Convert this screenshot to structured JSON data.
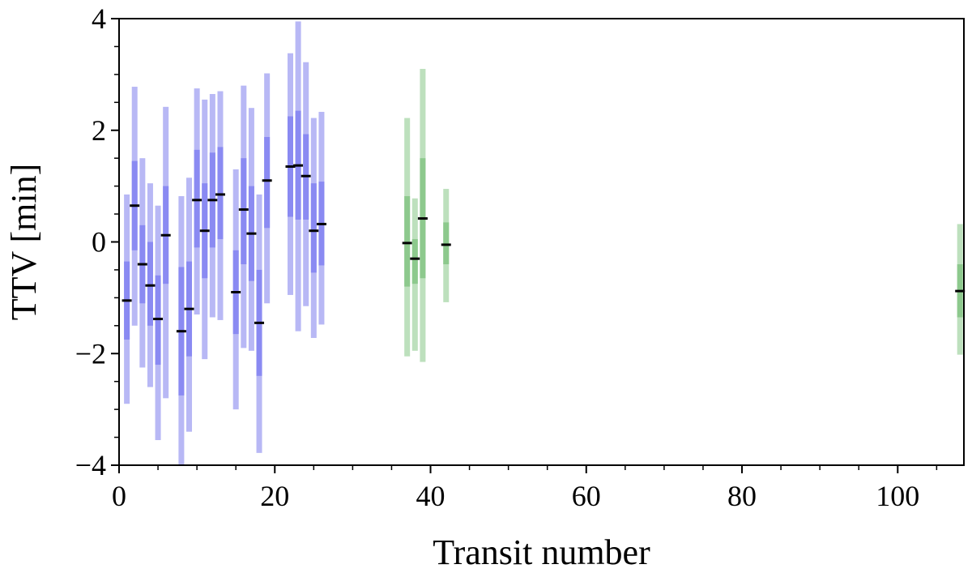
{
  "chart_data": {
    "type": "scatter",
    "title": "",
    "xlabel": "Transit number",
    "ylabel": "TTV [min]",
    "xlim": [
      0,
      108.5
    ],
    "ylim": [
      -4,
      4
    ],
    "xticks": [
      0,
      20,
      40,
      60,
      80,
      100
    ],
    "yticks": [
      4,
      2,
      0,
      -2,
      -4
    ],
    "xtick_labels": [
      "0",
      "20",
      "40",
      "60",
      "80",
      "100"
    ],
    "ytick_labels": [
      "4",
      "2",
      "0",
      "−2",
      "−4"
    ],
    "grid": false,
    "legend": "none",
    "marker": "median dash with 1σ (dark) and 2σ (light) error bars",
    "series": [
      {
        "color_inner": "#8a8af2",
        "color_outer": "#b8b8f5",
        "points": [
          {
            "x": 1,
            "y": -1.05,
            "s1": [
              -1.75,
              -0.35
            ],
            "s2": [
              -2.9,
              0.85
            ]
          },
          {
            "x": 2,
            "y": 0.65,
            "s1": [
              -0.15,
              1.45
            ],
            "s2": [
              -1.5,
              2.78
            ]
          },
          {
            "x": 3,
            "y": -0.4,
            "s1": [
              -1.1,
              0.3
            ],
            "s2": [
              -2.25,
              1.5
            ]
          },
          {
            "x": 4,
            "y": -0.78,
            "s1": [
              -1.5,
              0.0
            ],
            "s2": [
              -2.6,
              1.05
            ]
          },
          {
            "x": 5,
            "y": -1.38,
            "s1": [
              -2.2,
              -0.6
            ],
            "s2": [
              -3.55,
              0.65
            ]
          },
          {
            "x": 6,
            "y": 0.12,
            "s1": [
              -0.75,
              1.0
            ],
            "s2": [
              -2.8,
              2.42
            ]
          },
          {
            "x": 8,
            "y": -1.6,
            "s1": [
              -2.75,
              -0.45
            ],
            "s2": [
              -4.0,
              0.82
            ]
          },
          {
            "x": 9,
            "y": -1.2,
            "s1": [
              -2.05,
              -0.35
            ],
            "s2": [
              -3.4,
              1.15
            ]
          },
          {
            "x": 10,
            "y": 0.75,
            "s1": [
              -0.1,
              1.65
            ],
            "s2": [
              -1.3,
              2.75
            ]
          },
          {
            "x": 11,
            "y": 0.2,
            "s1": [
              -0.65,
              1.05
            ],
            "s2": [
              -2.1,
              2.55
            ]
          },
          {
            "x": 12,
            "y": 0.75,
            "s1": [
              -0.1,
              1.6
            ],
            "s2": [
              -1.35,
              2.65
            ]
          },
          {
            "x": 13,
            "y": 0.85,
            "s1": [
              0.05,
              1.7
            ],
            "s2": [
              -1.4,
              2.7
            ]
          },
          {
            "x": 15,
            "y": -0.9,
            "s1": [
              -1.65,
              -0.15
            ],
            "s2": [
              -3.0,
              1.3
            ]
          },
          {
            "x": 16,
            "y": 0.58,
            "s1": [
              -0.4,
              1.5
            ],
            "s2": [
              -1.9,
              2.8
            ]
          },
          {
            "x": 17,
            "y": 0.15,
            "s1": [
              -0.7,
              1.0
            ],
            "s2": [
              -1.95,
              2.4
            ]
          },
          {
            "x": 18,
            "y": -1.45,
            "s1": [
              -2.4,
              -0.5
            ],
            "s2": [
              -3.78,
              0.85
            ]
          },
          {
            "x": 19,
            "y": 1.1,
            "s1": [
              0.25,
              1.88
            ],
            "s2": [
              -1.1,
              3.02
            ]
          },
          {
            "x": 22,
            "y": 1.35,
            "s1": [
              0.45,
              2.25
            ],
            "s2": [
              -0.95,
              3.38
            ]
          },
          {
            "x": 23,
            "y": 1.37,
            "s1": [
              0.4,
              2.35
            ],
            "s2": [
              -1.6,
              3.95
            ]
          },
          {
            "x": 24,
            "y": 1.18,
            "s1": [
              0.4,
              1.93
            ],
            "s2": [
              -1.15,
              3.22
            ]
          },
          {
            "x": 25,
            "y": 0.2,
            "s1": [
              -0.55,
              1.05
            ],
            "s2": [
              -1.72,
              2.22
            ]
          },
          {
            "x": 26,
            "y": 0.32,
            "s1": [
              -0.42,
              1.08
            ],
            "s2": [
              -1.48,
              2.33
            ]
          }
        ]
      },
      {
        "color_inner": "#8dc98d",
        "color_outer": "#bde0bd",
        "points": [
          {
            "x": 37,
            "y": -0.02,
            "s1": [
              -0.8,
              0.82
            ],
            "s2": [
              -2.05,
              2.22
            ]
          },
          {
            "x": 38,
            "y": -0.3,
            "s1": [
              -0.75,
              0.05
            ],
            "s2": [
              -1.95,
              0.78
            ]
          },
          {
            "x": 39,
            "y": 0.42,
            "s1": [
              -0.65,
              1.5
            ],
            "s2": [
              -2.15,
              3.1
            ]
          },
          {
            "x": 42,
            "y": -0.05,
            "s1": [
              -0.4,
              0.35
            ],
            "s2": [
              -1.08,
              0.95
            ]
          },
          {
            "x": 108,
            "y": -0.88,
            "s1": [
              -1.35,
              -0.4
            ],
            "s2": [
              -2.02,
              0.32
            ]
          }
        ]
      }
    ]
  }
}
